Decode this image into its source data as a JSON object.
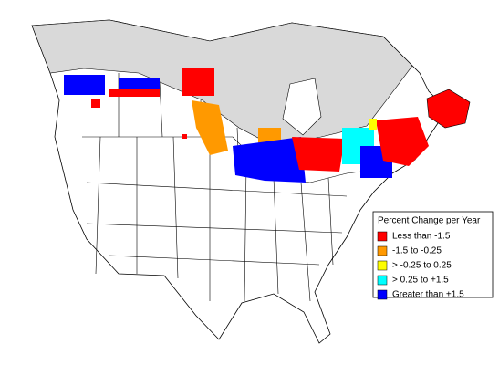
{
  "legend": {
    "title": "Percent Change per Year",
    "entries": [
      {
        "label": "Less than -1.5",
        "color": "#ff0000"
      },
      {
        "label": "-1.5 to -0.25",
        "color": "#ff9900"
      },
      {
        "label": "> -0.25 to 0.25",
        "color": "#ffff00"
      },
      {
        "label": "> 0.25 to +1.5",
        "color": "#00ffff"
      },
      {
        "label": "Greater than +1.5",
        "color": "#0000ff"
      }
    ]
  }
}
